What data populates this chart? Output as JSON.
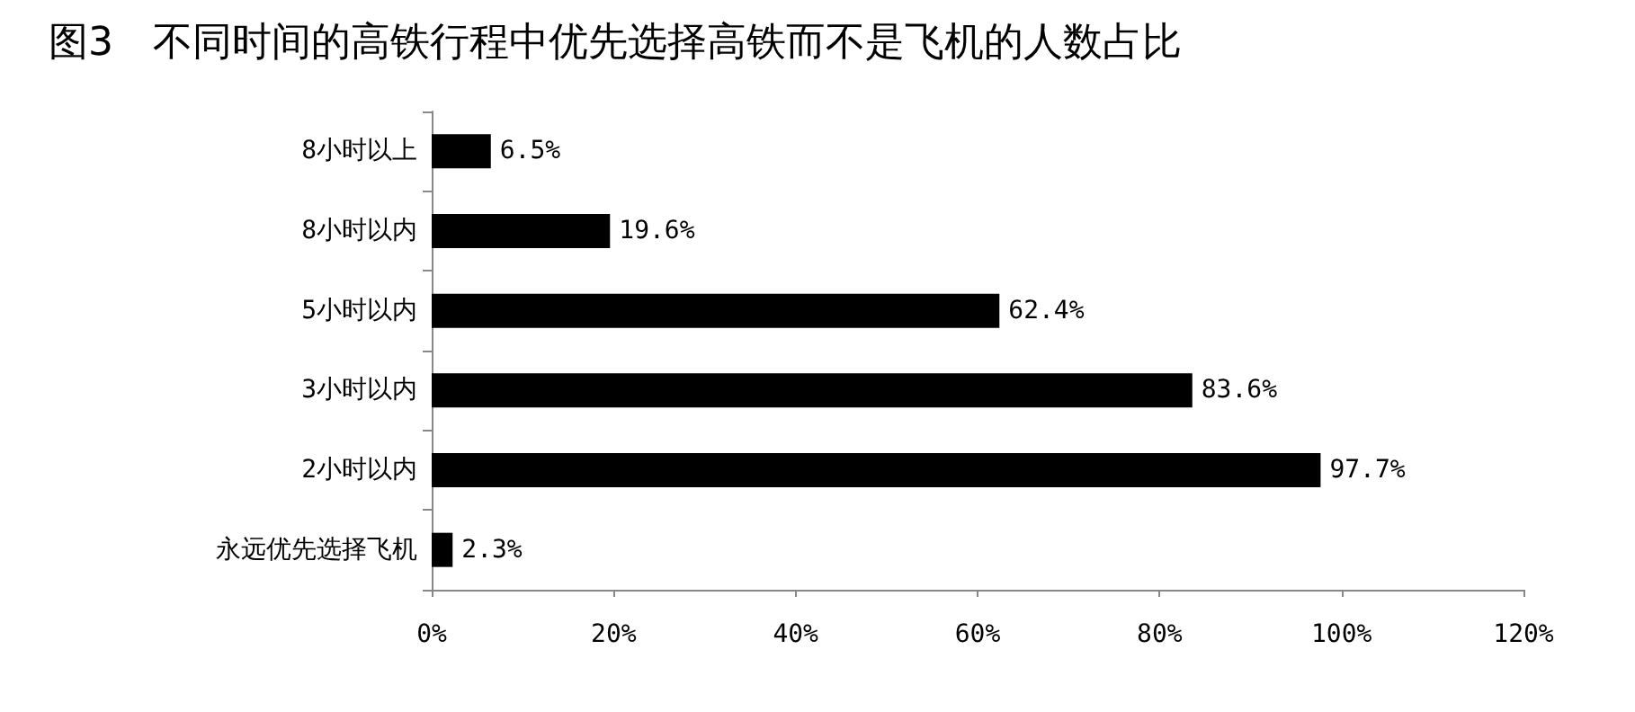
{
  "chart_data": {
    "type": "bar",
    "orientation": "horizontal",
    "title": "图3　不同时间的高铁行程中优先选择高铁而不是飞机的人数占比",
    "categories": [
      "8小时以上",
      "8小时以内",
      "5小时以内",
      "3小时以内",
      "2小时以内",
      "永远优先选择飞机"
    ],
    "values": [
      6.5,
      19.6,
      62.4,
      83.6,
      97.7,
      2.3
    ],
    "value_labels": [
      "6.5%",
      "19.6%",
      "62.4%",
      "83.6%",
      "97.7%",
      "2.3%"
    ],
    "color": "#000000",
    "xlim": [
      0,
      120
    ],
    "xticks": [
      {
        "value": 0,
        "label": "0%"
      },
      {
        "value": 20,
        "label": "20%"
      },
      {
        "value": 40,
        "label": "40%"
      },
      {
        "value": 60,
        "label": "60%"
      },
      {
        "value": 80,
        "label": "80%"
      },
      {
        "value": 100,
        "label": "100%"
      },
      {
        "value": 120,
        "label": "120%"
      }
    ],
    "grid": false
  }
}
